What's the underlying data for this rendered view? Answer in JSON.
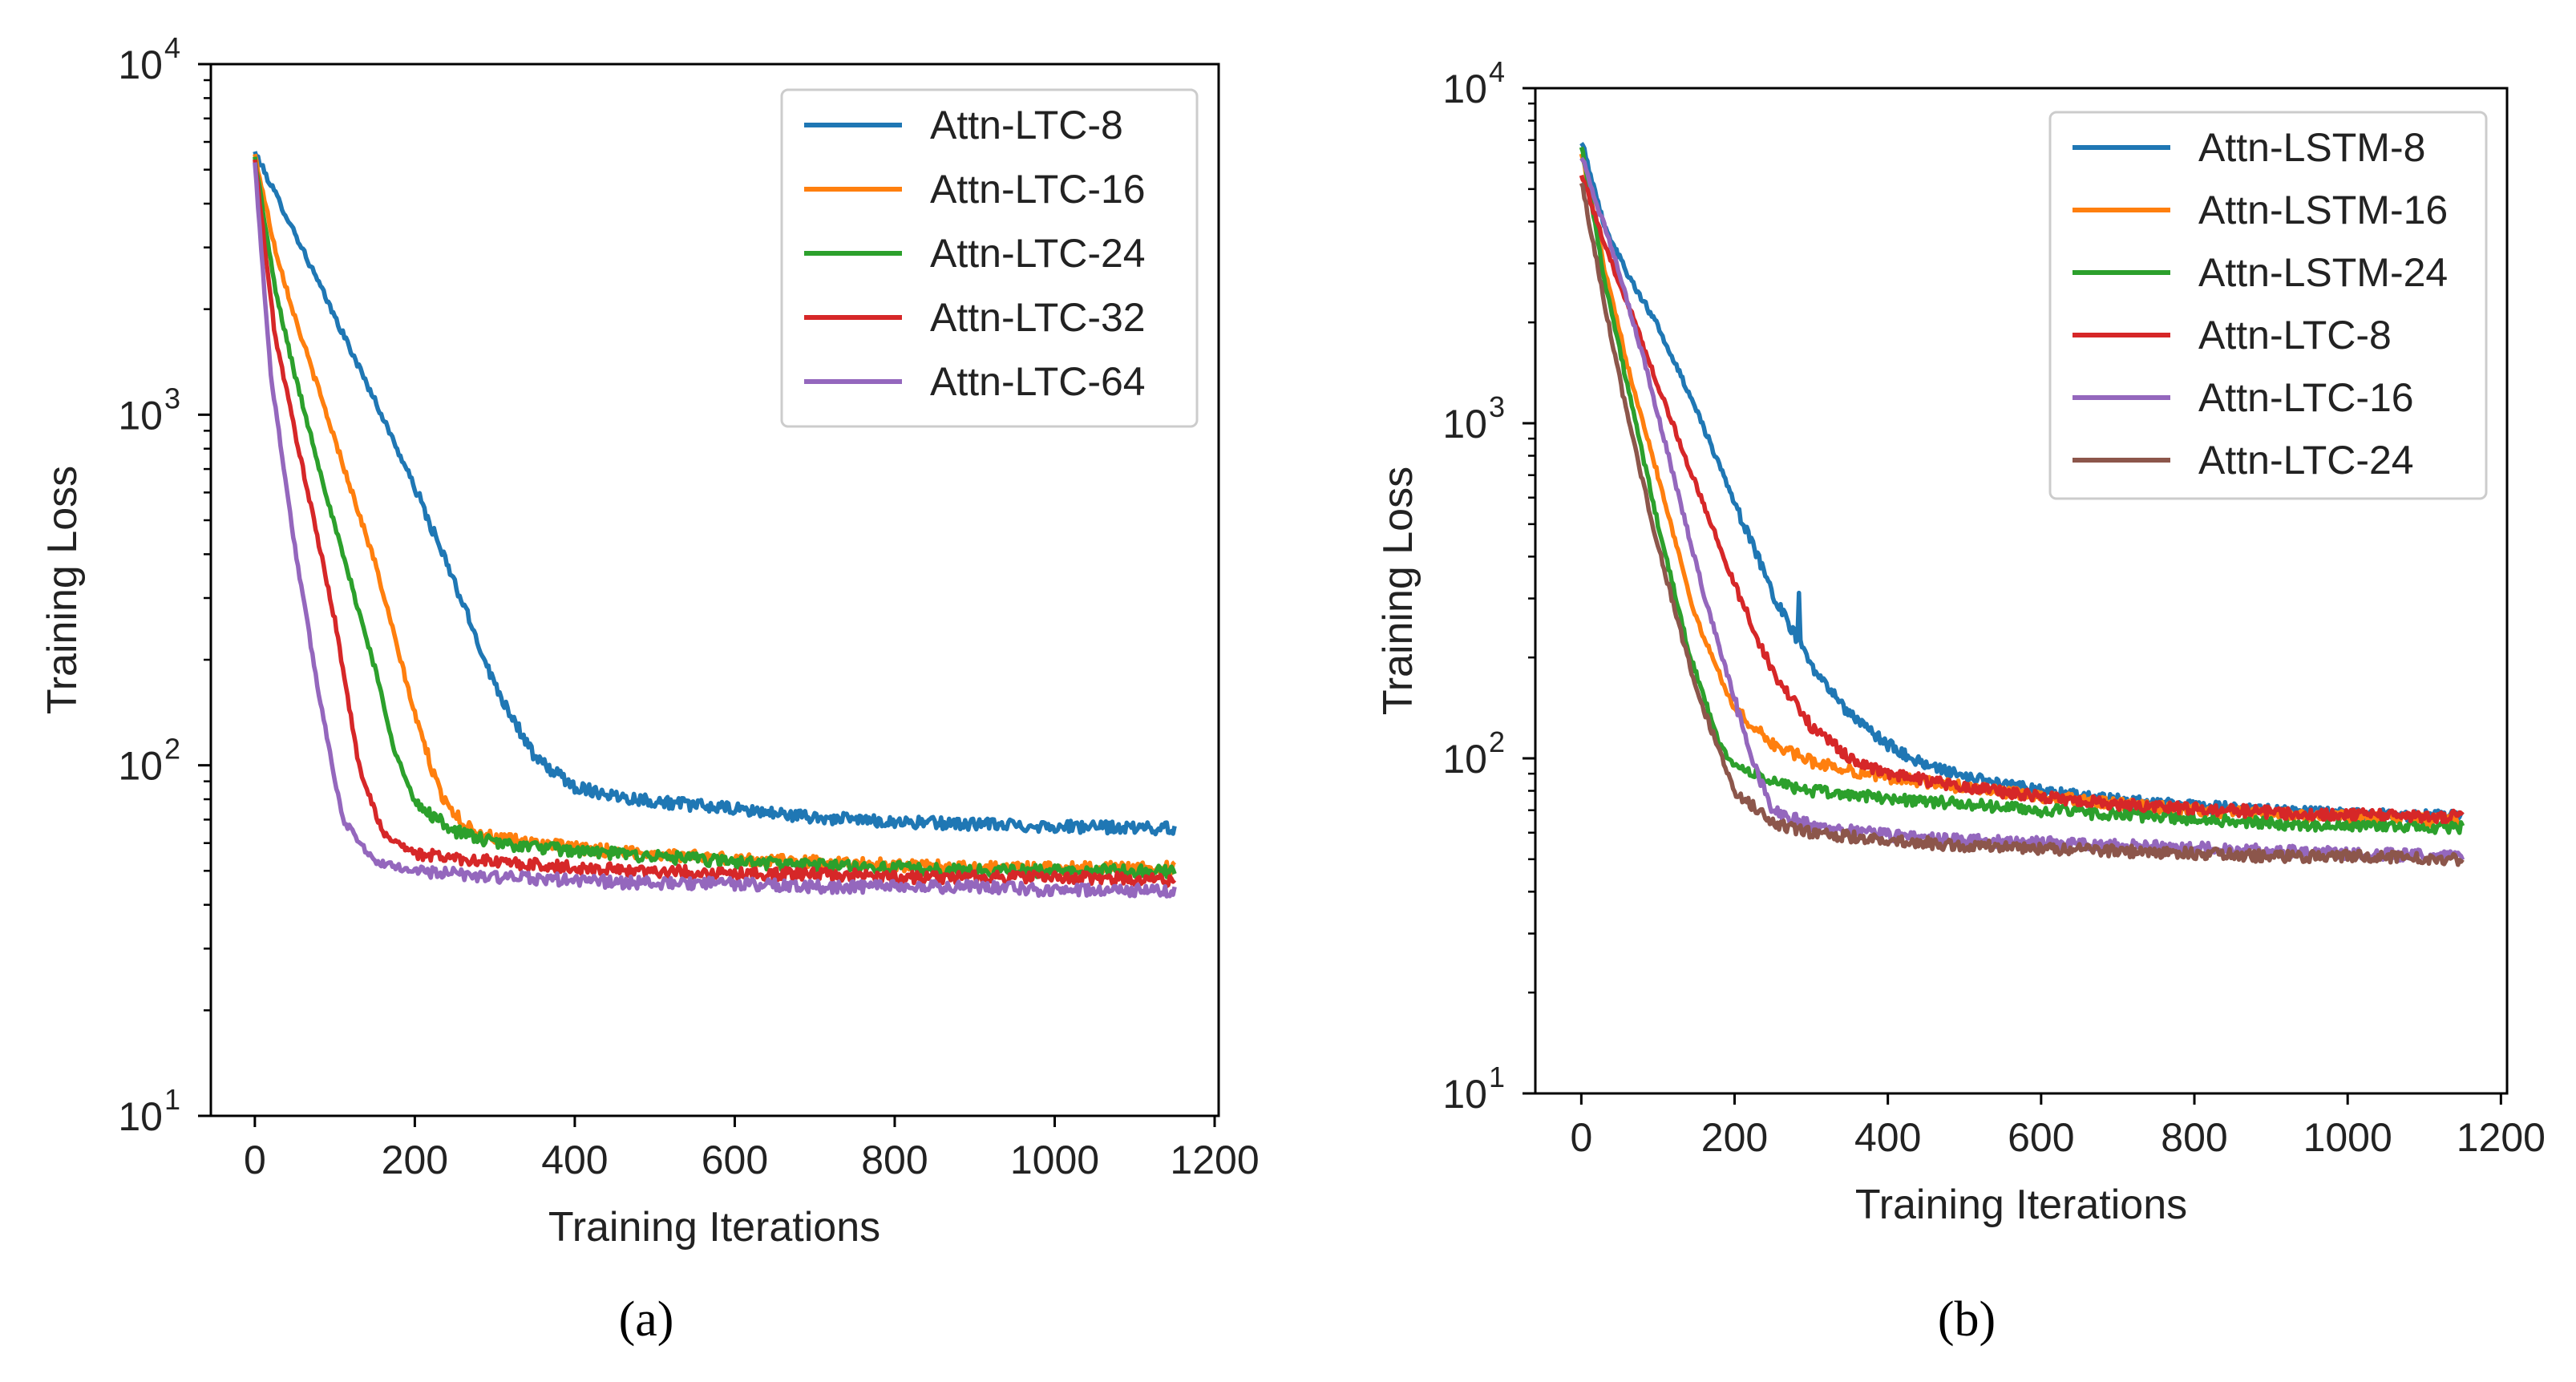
{
  "chart_data": [
    {
      "type": "line",
      "caption": "(a)",
      "xlabel": "Training Iterations",
      "ylabel": "Training Loss",
      "xlim": [
        -55,
        1205
      ],
      "ylim": [
        10,
        10000
      ],
      "yscale": "log",
      "xticks": [
        0,
        200,
        400,
        600,
        800,
        1000,
        1200
      ],
      "xtick_labels": [
        "0",
        "200",
        "400",
        "600",
        "800",
        "1000",
        "1200"
      ],
      "yticks": [
        10,
        100,
        1000,
        10000
      ],
      "ytick_labels": [
        {
          "base": "10",
          "exp": "1"
        },
        {
          "base": "10",
          "exp": "2"
        },
        {
          "base": "10",
          "exp": "3"
        },
        {
          "base": "10",
          "exp": "4"
        }
      ],
      "legend_position": "top-right",
      "iterations": 1150,
      "series": [
        {
          "name": "Attn-LTC-8",
          "color": "#1f77b4",
          "points": [
            [
              0,
              5600
            ],
            [
              25,
              4300
            ],
            [
              50,
              3300
            ],
            [
              100,
              1900
            ],
            [
              150,
              1100
            ],
            [
              200,
              620
            ],
            [
              250,
              330
            ],
            [
              300,
              170
            ],
            [
              350,
              105
            ],
            [
              400,
              87
            ],
            [
              450,
              82
            ],
            [
              500,
              79
            ],
            [
              600,
              75
            ],
            [
              700,
              71
            ],
            [
              800,
              69
            ],
            [
              900,
              68
            ],
            [
              1000,
              67
            ],
            [
              1150,
              66
            ]
          ]
        },
        {
          "name": "Attn-LTC-16",
          "color": "#ff7f0e",
          "points": [
            [
              0,
              5500
            ],
            [
              25,
              3000
            ],
            [
              50,
              1900
            ],
            [
              100,
              850
            ],
            [
              150,
              380
            ],
            [
              200,
              140
            ],
            [
              230,
              85
            ],
            [
              260,
              68
            ],
            [
              300,
              62
            ],
            [
              400,
              58
            ],
            [
              500,
              56
            ],
            [
              600,
              54
            ],
            [
              700,
              53
            ],
            [
              800,
              52
            ],
            [
              900,
              51
            ],
            [
              1000,
              51
            ],
            [
              1150,
              51
            ]
          ]
        },
        {
          "name": "Attn-LTC-24",
          "color": "#2ca02c",
          "points": [
            [
              0,
              5400
            ],
            [
              25,
              2300
            ],
            [
              50,
              1300
            ],
            [
              100,
              480
            ],
            [
              150,
              190
            ],
            [
              175,
              110
            ],
            [
              200,
              78
            ],
            [
              250,
              65
            ],
            [
              300,
              60
            ],
            [
              400,
              57
            ],
            [
              500,
              55
            ],
            [
              600,
              53
            ],
            [
              700,
              52
            ],
            [
              800,
              51
            ],
            [
              900,
              50
            ],
            [
              1000,
              50
            ],
            [
              1150,
              50
            ]
          ]
        },
        {
          "name": "Attn-LTC-32",
          "color": "#d62728",
          "points": [
            [
              0,
              5300
            ],
            [
              25,
              1700
            ],
            [
              50,
              900
            ],
            [
              100,
              260
            ],
            [
              130,
              100
            ],
            [
              160,
              64
            ],
            [
              200,
              56
            ],
            [
              300,
              53
            ],
            [
              400,
              51
            ],
            [
              500,
              50
            ],
            [
              600,
              49
            ],
            [
              700,
              49
            ],
            [
              800,
              48
            ],
            [
              900,
              48
            ],
            [
              1000,
              48
            ],
            [
              1150,
              47
            ]
          ]
        },
        {
          "name": "Attn-LTC-64",
          "color": "#9467bd",
          "points": [
            [
              0,
              5200
            ],
            [
              20,
              1300
            ],
            [
              50,
              420
            ],
            [
              80,
              160
            ],
            [
              110,
              70
            ],
            [
              150,
              53
            ],
            [
              200,
              50
            ],
            [
              300,
              48
            ],
            [
              400,
              47
            ],
            [
              500,
              46
            ],
            [
              600,
              46
            ],
            [
              700,
              45
            ],
            [
              800,
              45
            ],
            [
              900,
              45
            ],
            [
              1000,
              44
            ],
            [
              1150,
              44
            ]
          ]
        }
      ]
    },
    {
      "type": "line",
      "caption": "(b)",
      "xlabel": "Training Iterations",
      "ylabel": "Training Loss",
      "xlim": [
        -60,
        1208
      ],
      "ylim": [
        10,
        10000
      ],
      "yscale": "log",
      "xticks": [
        0,
        200,
        400,
        600,
        800,
        1000,
        1200
      ],
      "xtick_labels": [
        "0",
        "200",
        "400",
        "600",
        "800",
        "1000",
        "1200"
      ],
      "yticks": [
        10,
        100,
        1000,
        10000
      ],
      "ytick_labels": [
        {
          "base": "10",
          "exp": "1"
        },
        {
          "base": "10",
          "exp": "2"
        },
        {
          "base": "10",
          "exp": "3"
        },
        {
          "base": "10",
          "exp": "4"
        }
      ],
      "legend_position": "top-right",
      "iterations": 1150,
      "series": [
        {
          "name": "Attn-LSTM-8",
          "color": "#1f77b4",
          "points": [
            [
              0,
              7000
            ],
            [
              30,
              3900
            ],
            [
              60,
              2800
            ],
            [
              100,
              1950
            ],
            [
              150,
              1100
            ],
            [
              200,
              580
            ],
            [
              250,
              310
            ],
            [
              300,
              190
            ],
            [
              350,
              135
            ],
            [
              400,
              110
            ],
            [
              450,
              95
            ],
            [
              500,
              88
            ],
            [
              600,
              80
            ],
            [
              700,
              75
            ],
            [
              800,
              72
            ],
            [
              900,
              70
            ],
            [
              1000,
              68
            ],
            [
              1150,
              67
            ]
          ]
        },
        {
          "name": "Attn-LSTM-16",
          "color": "#ff7f0e",
          "points": [
            [
              0,
              6500
            ],
            [
              30,
              2900
            ],
            [
              60,
              1500
            ],
            [
              100,
              700
            ],
            [
              150,
              260
            ],
            [
              200,
              140
            ],
            [
              250,
              110
            ],
            [
              300,
              98
            ],
            [
              350,
              92
            ],
            [
              400,
              88
            ],
            [
              500,
              82
            ],
            [
              600,
              77
            ],
            [
              700,
              73
            ],
            [
              800,
              70
            ],
            [
              900,
              68
            ],
            [
              1000,
              67
            ],
            [
              1150,
              65
            ]
          ]
        },
        {
          "name": "Attn-LSTM-24",
          "color": "#2ca02c",
          "points": [
            [
              0,
              6800
            ],
            [
              30,
              2700
            ],
            [
              60,
              1300
            ],
            [
              100,
              500
            ],
            [
              140,
              210
            ],
            [
              180,
              110
            ],
            [
              200,
              95
            ],
            [
              250,
              85
            ],
            [
              300,
              80
            ],
            [
              400,
              76
            ],
            [
              500,
              73
            ],
            [
              600,
              70
            ],
            [
              700,
              68
            ],
            [
              800,
              66
            ],
            [
              900,
              64
            ],
            [
              1000,
              63
            ],
            [
              1150,
              62
            ]
          ]
        },
        {
          "name": "Attn-LTC-8",
          "color": "#d62728",
          "points": [
            [
              0,
              5600
            ],
            [
              30,
              3400
            ],
            [
              60,
              2300
            ],
            [
              100,
              1300
            ],
            [
              150,
              650
            ],
            [
              200,
              330
            ],
            [
              250,
              180
            ],
            [
              300,
              125
            ],
            [
              350,
              100
            ],
            [
              400,
              90
            ],
            [
              500,
              82
            ],
            [
              600,
              77
            ],
            [
              700,
              73
            ],
            [
              800,
              71
            ],
            [
              900,
              69
            ],
            [
              1000,
              68
            ],
            [
              1150,
              67
            ]
          ]
        },
        {
          "name": "Attn-LTC-16",
          "color": "#9467bd",
          "points": [
            [
              0,
              6300
            ],
            [
              40,
              3300
            ],
            [
              80,
              1600
            ],
            [
              120,
              700
            ],
            [
              160,
              310
            ],
            [
              200,
              150
            ],
            [
              230,
              90
            ],
            [
              250,
              70
            ],
            [
              300,
              63
            ],
            [
              400,
              59
            ],
            [
              500,
              57
            ],
            [
              600,
              56
            ],
            [
              700,
              55
            ],
            [
              800,
              54
            ],
            [
              900,
              53
            ],
            [
              1000,
              52
            ],
            [
              1150,
              51
            ]
          ]
        },
        {
          "name": "Attn-LTC-24",
          "color": "#8c564b",
          "points": [
            [
              0,
              5300
            ],
            [
              30,
              2300
            ],
            [
              60,
              1050
            ],
            [
              100,
              430
            ],
            [
              150,
              160
            ],
            [
              200,
              80
            ],
            [
              250,
              64
            ],
            [
              300,
              60
            ],
            [
              400,
              57
            ],
            [
              500,
              55
            ],
            [
              600,
              54
            ],
            [
              700,
              53
            ],
            [
              800,
              52
            ],
            [
              900,
              51
            ],
            [
              1000,
              51
            ],
            [
              1150,
              50
            ]
          ]
        }
      ]
    }
  ]
}
